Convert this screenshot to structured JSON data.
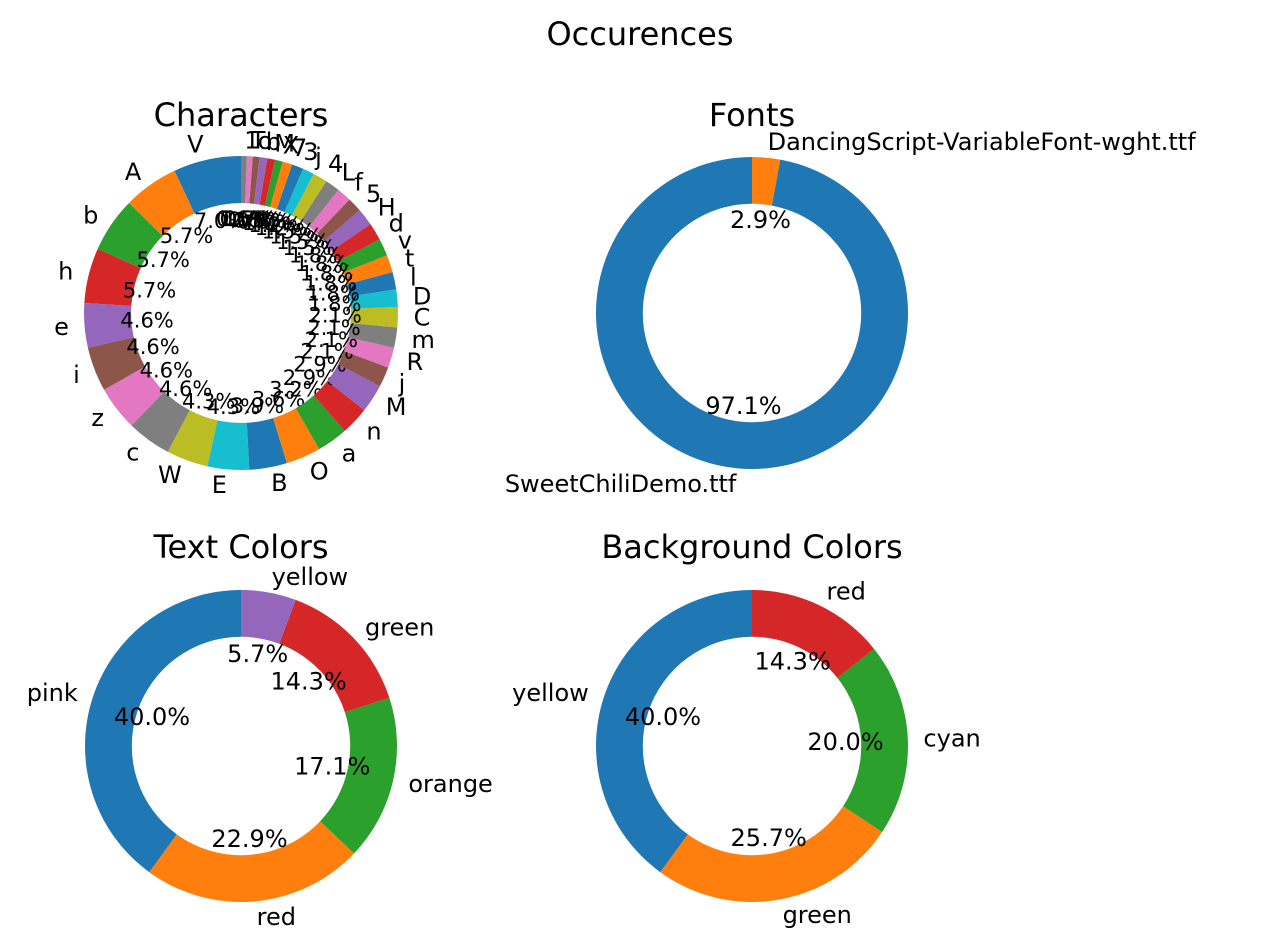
{
  "figure": {
    "title": "Occurences"
  },
  "palette": [
    "#1f77b4",
    "#ff7f0e",
    "#2ca02c",
    "#d62728",
    "#9467bd",
    "#8c564b",
    "#e377c2",
    "#7f7f7f",
    "#bcbd22",
    "#17becf"
  ],
  "chart_data": [
    {
      "type": "pie",
      "donut": true,
      "title": "Characters",
      "start_angle_deg": 90,
      "direction": "counterclockwise",
      "labels": [
        "V",
        "A",
        "b",
        "h",
        "e",
        "i",
        "z",
        "c",
        "W",
        "E",
        "B",
        "O",
        "a",
        "n",
        "M",
        "j",
        "R",
        "m",
        "C",
        "D",
        "l",
        "t",
        "v",
        "d",
        "H",
        "5",
        "f",
        "L",
        "4",
        "j",
        "3",
        "7",
        "X",
        "M",
        "b",
        "o",
        "T",
        "1"
      ],
      "values": [
        7.0,
        5.7,
        5.7,
        5.7,
        4.6,
        4.6,
        4.6,
        4.6,
        4.3,
        4.3,
        3.9,
        3.6,
        3.2,
        2.9,
        2.9,
        2.1,
        2.1,
        2.1,
        2.1,
        1.8,
        1.8,
        1.8,
        1.8,
        1.8,
        1.8,
        1.5,
        1.5,
        1.5,
        1.5,
        1.2,
        1.2,
        1.0,
        0.8,
        0.8,
        0.8,
        0.7,
        0.6,
        0.6
      ],
      "autopct_labels": [
        "7.0%",
        "5.7%",
        "5.7%",
        "5.7%",
        "4.6%",
        "4.6%",
        "4.6%",
        "4.6%",
        "4.3%",
        "4.3%",
        "3.9%",
        "3.6%",
        "3.2%",
        "2.9%",
        "2.9%",
        "2.1%",
        "2.1%",
        "2.1%",
        "2.1%",
        "1.8%",
        "1.8%",
        "1.8%",
        "1.8%",
        "1.8%",
        "1.8%",
        "1.5%",
        "1.5%",
        "1.5%",
        "1.5%",
        "1.2%",
        "1.2%",
        "1.0%",
        "0.8%",
        "0.8%",
        "0.8%",
        "0.7%",
        "0.6%",
        "0.6%"
      ]
    },
    {
      "type": "pie",
      "donut": true,
      "title": "Fonts",
      "start_angle_deg": 90,
      "direction": "counterclockwise",
      "labels": [
        "SweetChiliDemo.ttf",
        "DancingScript-VariableFont-wght.ttf"
      ],
      "values": [
        97.1,
        2.9
      ],
      "autopct_labels": [
        "97.1%",
        "2.9%"
      ]
    },
    {
      "type": "pie",
      "donut": true,
      "title": "Text Colors",
      "start_angle_deg": 90,
      "direction": "counterclockwise",
      "labels": [
        "pink",
        "red",
        "orange",
        "green",
        "yellow"
      ],
      "values": [
        40.0,
        22.9,
        17.1,
        14.3,
        5.7
      ],
      "autopct_labels": [
        "40.0%",
        "22.9%",
        "17.1%",
        "14.3%",
        "5.7%"
      ]
    },
    {
      "type": "pie",
      "donut": true,
      "title": "Background Colors",
      "start_angle_deg": 90,
      "direction": "counterclockwise",
      "labels": [
        "yellow",
        "green",
        "cyan",
        "red"
      ],
      "values": [
        40.0,
        25.7,
        20.0,
        14.3
      ],
      "autopct_labels": [
        "40.0%",
        "25.7%",
        "20.0%",
        "14.3%"
      ]
    }
  ]
}
